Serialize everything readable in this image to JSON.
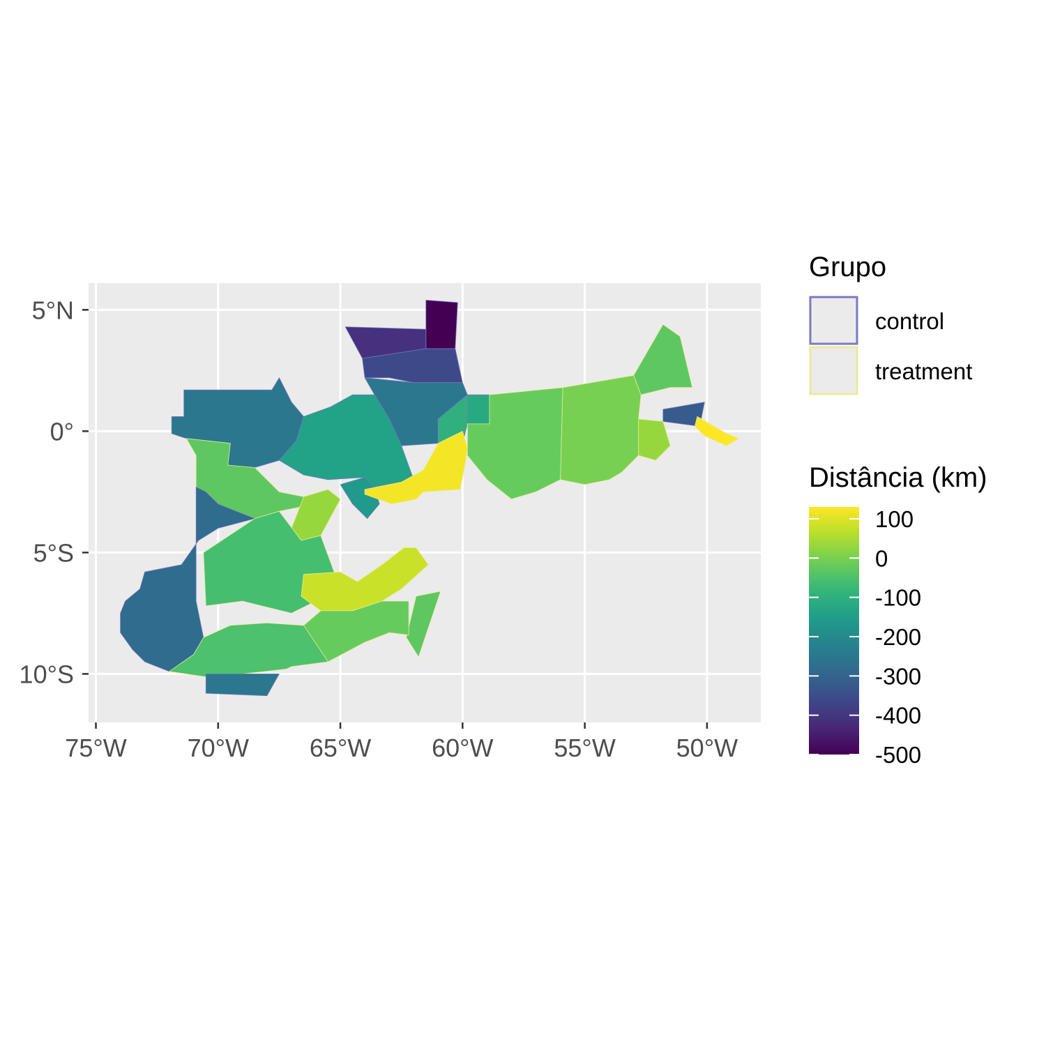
{
  "chart_data": {
    "type": "map",
    "panel_background": "#ebebeb",
    "grid": true,
    "x_axis": {
      "range": [
        -75.3,
        -47.8
      ],
      "ticks": [
        {
          "value": -75,
          "label": "75°W"
        },
        {
          "value": -70,
          "label": "70°W"
        },
        {
          "value": -65,
          "label": "65°W"
        },
        {
          "value": -60,
          "label": "60°W"
        },
        {
          "value": -55,
          "label": "55°W"
        },
        {
          "value": -50,
          "label": "50°W"
        }
      ]
    },
    "y_axis": {
      "range": [
        -12,
        6.1
      ],
      "ticks": [
        {
          "value": 5,
          "label": "5°N"
        },
        {
          "value": 0,
          "label": "0°"
        },
        {
          "value": -5,
          "label": "5°S"
        },
        {
          "value": -10,
          "label": "10°S"
        }
      ]
    },
    "legend_position": "right",
    "legend_group": {
      "title": "Grupo",
      "items": [
        {
          "label": "control",
          "outline_color": "#7b79c0"
        },
        {
          "label": "treatment",
          "outline_color": "#ece99a"
        }
      ]
    },
    "legend_distance": {
      "title": "Distância (km)",
      "palette": "viridis",
      "range": [
        -500,
        130
      ],
      "breaks": [
        {
          "value": 100,
          "label": "100"
        },
        {
          "value": 0,
          "label": "0"
        },
        {
          "value": -100,
          "label": "-100"
        },
        {
          "value": -200,
          "label": "-200"
        },
        {
          "value": -300,
          "label": "-300"
        },
        {
          "value": -400,
          "label": "-400"
        },
        {
          "value": -500,
          "label": "-500"
        }
      ]
    },
    "regions": [
      {
        "group": "control",
        "value": -500,
        "poly": [
          [
            -61.5,
            5.4
          ],
          [
            -60.2,
            5.3
          ],
          [
            -60.3,
            3.4
          ],
          [
            -61.5,
            3.4
          ]
        ]
      },
      {
        "group": "control",
        "value": -410,
        "poly": [
          [
            -64.8,
            4.3
          ],
          [
            -61.5,
            4.2
          ],
          [
            -61.5,
            3.2
          ],
          [
            -64.1,
            3.0
          ]
        ]
      },
      {
        "group": "control",
        "value": -360,
        "poly": [
          [
            -64.1,
            3.0
          ],
          [
            -61.5,
            3.4
          ],
          [
            -60.3,
            3.4
          ],
          [
            -60.0,
            2.0
          ],
          [
            -61.0,
            1.9
          ],
          [
            -62.0,
            2.0
          ],
          [
            -63.0,
            2.2
          ],
          [
            -64.0,
            2.2
          ]
        ]
      },
      {
        "group": "control",
        "value": -250,
        "poly": [
          [
            -64.0,
            2.2
          ],
          [
            -62.0,
            2.0
          ],
          [
            -60.0,
            2.0
          ],
          [
            -59.8,
            1.5
          ],
          [
            -61.0,
            0.5
          ],
          [
            -61.0,
            -0.5
          ],
          [
            -62.5,
            -0.6
          ],
          [
            -63.0,
            0.5
          ],
          [
            -63.6,
            1.5
          ]
        ]
      },
      {
        "group": "control",
        "value": -250,
        "poly": [
          [
            -71.4,
            1.7
          ],
          [
            -67.8,
            1.7
          ],
          [
            -67.5,
            2.2
          ],
          [
            -67.0,
            1.2
          ],
          [
            -66.5,
            0.6
          ],
          [
            -66.8,
            -0.4
          ],
          [
            -67.5,
            -1.2
          ],
          [
            -68.5,
            -1.5
          ],
          [
            -69.6,
            -1.4
          ],
          [
            -69.5,
            -0.5
          ],
          [
            -71.3,
            -0.3
          ],
          [
            -71.9,
            -0.1
          ],
          [
            -71.9,
            0.6
          ],
          [
            -71.4,
            0.6
          ]
        ]
      },
      {
        "group": "control",
        "value": -140,
        "poly": [
          [
            -66.8,
            -0.4
          ],
          [
            -66.5,
            0.6
          ],
          [
            -65.4,
            1.0
          ],
          [
            -64.5,
            1.5
          ],
          [
            -63.6,
            1.5
          ],
          [
            -63.0,
            0.5
          ],
          [
            -62.5,
            -0.6
          ],
          [
            -62.0,
            -2.0
          ],
          [
            -63.6,
            -2.3
          ],
          [
            -64.0,
            -1.9
          ],
          [
            -65.5,
            -2.0
          ],
          [
            -66.5,
            -1.8
          ],
          [
            -67.5,
            -1.2
          ]
        ]
      },
      {
        "group": "control",
        "value": -160,
        "poly": [
          [
            -64.0,
            -1.9
          ],
          [
            -63.6,
            -2.3
          ],
          [
            -63.4,
            -3.0
          ],
          [
            -63.9,
            -3.6
          ],
          [
            -64.5,
            -3.0
          ],
          [
            -65.0,
            -2.2
          ]
        ]
      },
      {
        "group": "control",
        "value": -100,
        "poly": [
          [
            -61.0,
            -0.5
          ],
          [
            -61.0,
            0.5
          ],
          [
            -59.8,
            1.5
          ],
          [
            -59.8,
            0.3
          ],
          [
            -60.0,
            -0.5
          ]
        ]
      },
      {
        "group": "control",
        "value": -120,
        "poly": [
          [
            -59.8,
            1.5
          ],
          [
            -58.9,
            1.5
          ],
          [
            -58.9,
            0.3
          ],
          [
            -59.8,
            0.3
          ]
        ]
      },
      {
        "group": "treatment",
        "value": -20,
        "poly": [
          [
            -58.9,
            1.5
          ],
          [
            -55.9,
            1.8
          ],
          [
            -56.0,
            -2.0
          ],
          [
            -57.0,
            -2.5
          ],
          [
            -58.0,
            -2.8
          ],
          [
            -59.0,
            -2.0
          ],
          [
            -59.8,
            -1.0
          ],
          [
            -59.8,
            0.3
          ],
          [
            -58.9,
            0.3
          ]
        ]
      },
      {
        "group": "treatment",
        "value": 0,
        "poly": [
          [
            -55.9,
            1.8
          ],
          [
            -53.0,
            2.3
          ],
          [
            -52.7,
            1.5
          ],
          [
            -52.8,
            0.5
          ],
          [
            -52.8,
            -1.0
          ],
          [
            -53.5,
            -1.7
          ],
          [
            -54.0,
            -2.0
          ],
          [
            -55.0,
            -2.2
          ],
          [
            -56.0,
            -2.0
          ]
        ]
      },
      {
        "group": "treatment",
        "value": -30,
        "poly": [
          [
            -53.0,
            2.3
          ],
          [
            -51.8,
            4.4
          ],
          [
            -51.1,
            3.9
          ],
          [
            -50.6,
            1.8
          ],
          [
            -51.5,
            1.8
          ],
          [
            -52.7,
            1.5
          ]
        ]
      },
      {
        "group": "control",
        "value": -320,
        "poly": [
          [
            -51.8,
            0.9
          ],
          [
            -50.1,
            1.2
          ],
          [
            -50.3,
            0.2
          ],
          [
            -51.8,
            0.4
          ]
        ]
      },
      {
        "group": "treatment",
        "value": 30,
        "poly": [
          [
            -52.8,
            -1.0
          ],
          [
            -52.8,
            0.5
          ],
          [
            -51.8,
            0.4
          ],
          [
            -51.5,
            -0.6
          ],
          [
            -52.1,
            -1.2
          ]
        ]
      },
      {
        "group": "treatment",
        "value": 130,
        "poly": [
          [
            -50.4,
            0.6
          ],
          [
            -49.2,
            -0.1
          ],
          [
            -48.7,
            -0.3
          ],
          [
            -49.2,
            -0.6
          ],
          [
            -50.1,
            -0.2
          ],
          [
            -50.5,
            0.2
          ]
        ]
      },
      {
        "group": "treatment",
        "value": 120,
        "poly": [
          [
            -61.6,
            -2.5
          ],
          [
            -60.1,
            -2.4
          ],
          [
            -59.9,
            -1.4
          ],
          [
            -59.8,
            -0.7
          ],
          [
            -60.0,
            0.0
          ],
          [
            -61.0,
            -0.5
          ],
          [
            -61.6,
            -1.6
          ],
          [
            -62.5,
            -2.1
          ],
          [
            -64.0,
            -2.4
          ],
          [
            -64.0,
            -2.6
          ],
          [
            -62.9,
            -3.0
          ],
          [
            -61.9,
            -2.8
          ]
        ]
      },
      {
        "group": "treatment",
        "value": -30,
        "poly": [
          [
            -71.3,
            -0.3
          ],
          [
            -69.5,
            -0.5
          ],
          [
            -69.6,
            -1.4
          ],
          [
            -68.5,
            -1.5
          ],
          [
            -67.5,
            -2.5
          ],
          [
            -66.5,
            -2.7
          ],
          [
            -66.0,
            -3.0
          ],
          [
            -67.5,
            -3.3
          ],
          [
            -68.5,
            -3.6
          ],
          [
            -70.0,
            -3.0
          ],
          [
            -70.5,
            -2.5
          ],
          [
            -70.9,
            -2.3
          ],
          [
            -70.9,
            -1.0
          ]
        ]
      },
      {
        "group": "treatment",
        "value": 30,
        "poly": [
          [
            -66.5,
            -2.7
          ],
          [
            -65.5,
            -2.4
          ],
          [
            -65.0,
            -2.8
          ],
          [
            -65.8,
            -4.3
          ],
          [
            -66.6,
            -4.5
          ],
          [
            -67.0,
            -4.0
          ]
        ]
      },
      {
        "group": "control",
        "value": -280,
        "poly": [
          [
            -70.9,
            -2.3
          ],
          [
            -70.5,
            -2.5
          ],
          [
            -70.0,
            -3.0
          ],
          [
            -68.5,
            -3.6
          ],
          [
            -70.0,
            -4.0
          ],
          [
            -70.8,
            -4.5
          ],
          [
            -71.5,
            -5.5
          ],
          [
            -73.0,
            -5.8
          ],
          [
            -73.2,
            -6.5
          ],
          [
            -73.8,
            -7.0
          ],
          [
            -74.0,
            -7.5
          ],
          [
            -74.0,
            -8.3
          ],
          [
            -73.5,
            -9.0
          ],
          [
            -73.0,
            -9.5
          ],
          [
            -72.0,
            -9.9
          ],
          [
            -71.0,
            -9.2
          ],
          [
            -70.6,
            -8.5
          ],
          [
            -70.9,
            -7.0
          ]
        ]
      },
      {
        "group": "treatment",
        "value": -60,
        "poly": [
          [
            -68.5,
            -3.6
          ],
          [
            -67.5,
            -3.3
          ],
          [
            -66.6,
            -4.5
          ],
          [
            -65.8,
            -4.3
          ],
          [
            -65.0,
            -6.5
          ],
          [
            -67.0,
            -7.5
          ],
          [
            -69.0,
            -7.0
          ],
          [
            -70.5,
            -7.2
          ],
          [
            -70.6,
            -5.0
          ]
        ]
      },
      {
        "group": "treatment",
        "value": 80,
        "poly": [
          [
            -66.5,
            -5.9
          ],
          [
            -65.0,
            -5.8
          ],
          [
            -64.3,
            -6.2
          ],
          [
            -63.3,
            -5.5
          ],
          [
            -62.4,
            -4.8
          ],
          [
            -61.9,
            -4.8
          ],
          [
            -61.4,
            -5.5
          ],
          [
            -62.5,
            -6.5
          ],
          [
            -63.3,
            -7.0
          ],
          [
            -64.5,
            -7.4
          ],
          [
            -65.8,
            -7.4
          ],
          [
            -66.6,
            -6.8
          ]
        ]
      },
      {
        "group": "treatment",
        "value": -30,
        "poly": [
          [
            -61.9,
            -6.8
          ],
          [
            -60.9,
            -6.6
          ],
          [
            -61.3,
            -7.8
          ],
          [
            -61.8,
            -9.3
          ],
          [
            -62.3,
            -8.5
          ]
        ]
      },
      {
        "group": "treatment",
        "value": -20,
        "poly": [
          [
            -63.3,
            -7.0
          ],
          [
            -62.2,
            -7.0
          ],
          [
            -62.2,
            -8.4
          ],
          [
            -63.0,
            -8.3
          ],
          [
            -64.0,
            -8.7
          ],
          [
            -65.5,
            -9.5
          ],
          [
            -67.0,
            -9.7
          ],
          [
            -67.2,
            -8.7
          ],
          [
            -66.5,
            -8.0
          ],
          [
            -65.8,
            -7.4
          ],
          [
            -64.5,
            -7.4
          ]
        ]
      },
      {
        "group": "treatment",
        "value": -50,
        "poly": [
          [
            -70.6,
            -8.5
          ],
          [
            -71.0,
            -9.2
          ],
          [
            -72.0,
            -9.9
          ],
          [
            -70.0,
            -10.2
          ],
          [
            -69.0,
            -10.0
          ],
          [
            -67.2,
            -9.8
          ],
          [
            -67.0,
            -9.7
          ],
          [
            -65.5,
            -9.5
          ],
          [
            -66.5,
            -8.0
          ],
          [
            -68.0,
            -7.9
          ],
          [
            -69.5,
            -8.0
          ]
        ]
      },
      {
        "group": "control",
        "value": -250,
        "poly": [
          [
            -70.5,
            -10.0
          ],
          [
            -67.5,
            -10.0
          ],
          [
            -68.0,
            -10.9
          ],
          [
            -70.5,
            -10.8
          ]
        ]
      }
    ]
  }
}
